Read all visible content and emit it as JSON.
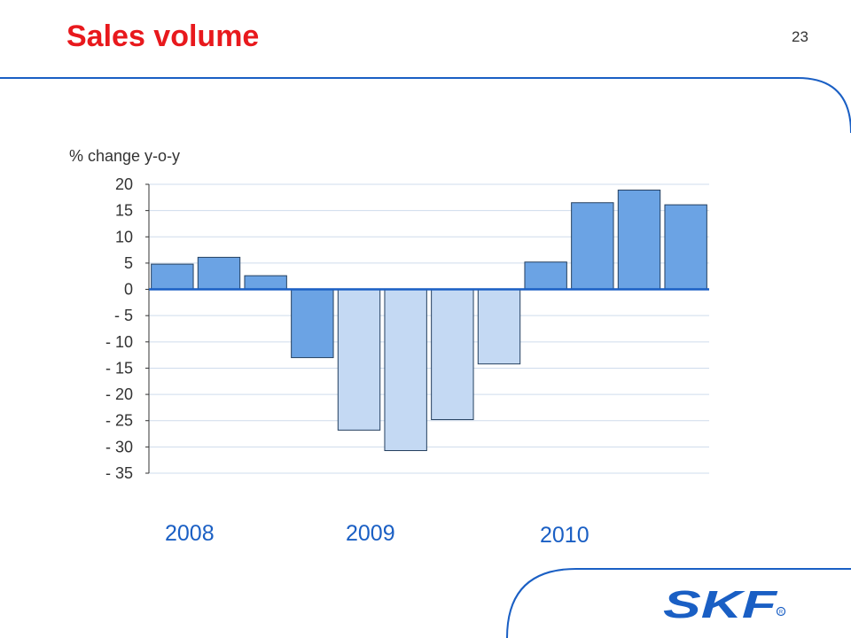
{
  "page": {
    "title": "Sales volume",
    "page_number": "23"
  },
  "brand": {
    "logo_text": "SKF",
    "logo_color": "#1a5fc4",
    "title_color": "#e8191d"
  },
  "chart_data": {
    "type": "bar",
    "title": "",
    "ylabel": "% change y-o-y",
    "ylim": [
      -35,
      20
    ],
    "yticks": [
      20,
      15,
      10,
      5,
      0,
      -5,
      -10,
      -15,
      -20,
      -25,
      -30,
      -35
    ],
    "ytick_labels": [
      "20",
      "15",
      "10",
      "5",
      "0",
      "- 5",
      "- 10",
      "- 15",
      "- 20",
      "- 25",
      "- 30",
      "- 35"
    ],
    "grid": true,
    "year_labels": [
      "2008",
      "2009",
      "2010"
    ],
    "values": [
      4.8,
      6.1,
      2.6,
      -13.0,
      -26.8,
      -30.7,
      -24.8,
      -14.2,
      5.2,
      16.5,
      18.9,
      16.1
    ],
    "bar_colors": [
      "#6ba3e4",
      "#6ba3e4",
      "#6ba3e4",
      "#6ba3e4",
      "#c4d9f3",
      "#c4d9f3",
      "#c4d9f3",
      "#c4d9f3",
      "#6ba3e4",
      "#6ba3e4",
      "#6ba3e4",
      "#6ba3e4"
    ]
  }
}
